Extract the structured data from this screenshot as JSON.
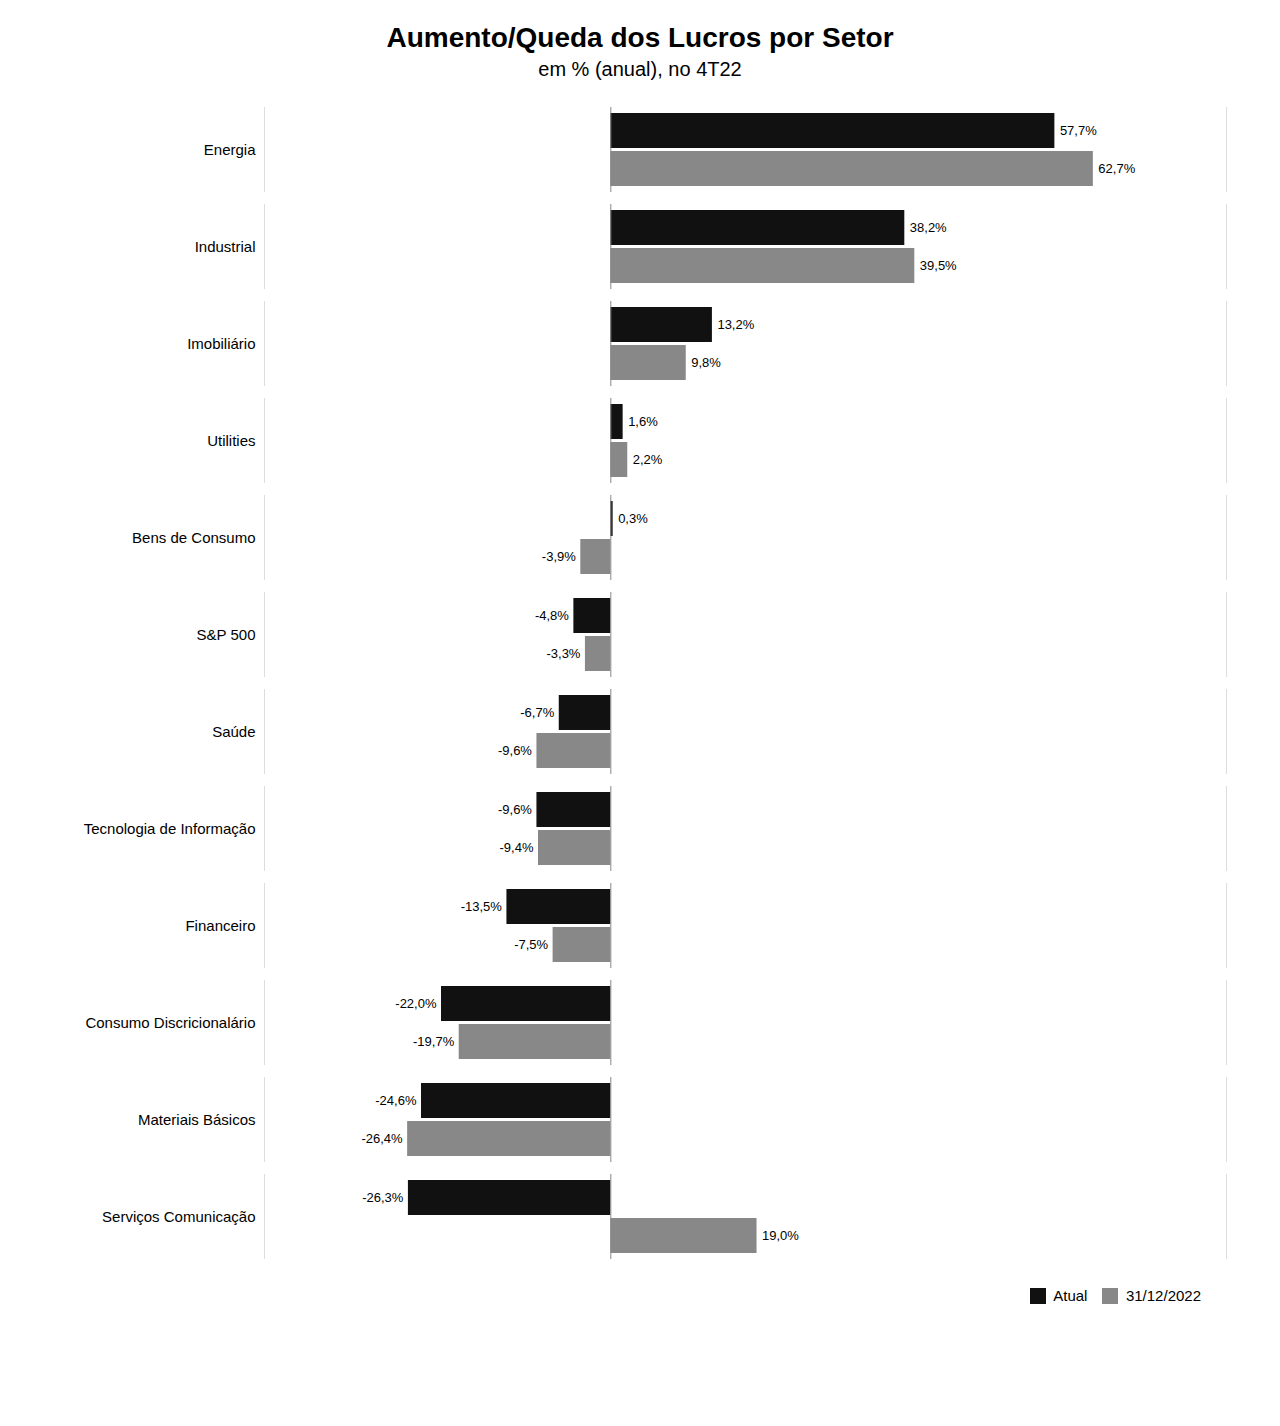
{
  "chart_data": {
    "type": "bar",
    "orientation": "horizontal",
    "title": "Aumento/Queda dos Lucros por Setor",
    "subtitle": "em % (anual), no 4T22",
    "categories": [
      "Energia",
      "Industrial",
      "Imobiliário",
      "Utilities",
      "Bens de Consumo",
      "S&P 500",
      "Saúde",
      "Tecnologia de Informação",
      "Financeiro",
      "Consumo Discricionalário",
      "Materiais Básicos",
      "Serviços Comunicação"
    ],
    "series": [
      {
        "name": "Atual",
        "color": "#111111",
        "values": [
          57.7,
          38.2,
          13.2,
          1.6,
          0.3,
          -4.8,
          -6.7,
          -9.6,
          -13.5,
          -22.0,
          -24.6,
          -26.3
        ],
        "value_labels": [
          "57,7%",
          "38,2%",
          "13,2%",
          "1,6%",
          "0,3%",
          "-4,8%",
          "-6,7%",
          "-9,6%",
          "-13,5%",
          "-22,0%",
          "-24,6%",
          "-26,3%"
        ]
      },
      {
        "name": "31/12/2022",
        "color": "#888888",
        "values": [
          62.7,
          39.5,
          9.8,
          2.2,
          -3.9,
          -3.3,
          -9.6,
          -9.4,
          -7.5,
          -19.7,
          -26.4,
          19.0
        ],
        "value_labels": [
          "62,7%",
          "39,5%",
          "9,8%",
          "2,2%",
          "-3,9%",
          "-3,3%",
          "-9,6%",
          "-9,4%",
          "-7,5%",
          "-19,7%",
          "-26,4%",
          "19,0%"
        ]
      }
    ],
    "xlim": [
      -45,
      80
    ],
    "data_labels": true,
    "tick_labels": "y",
    "legend": "lower right"
  }
}
